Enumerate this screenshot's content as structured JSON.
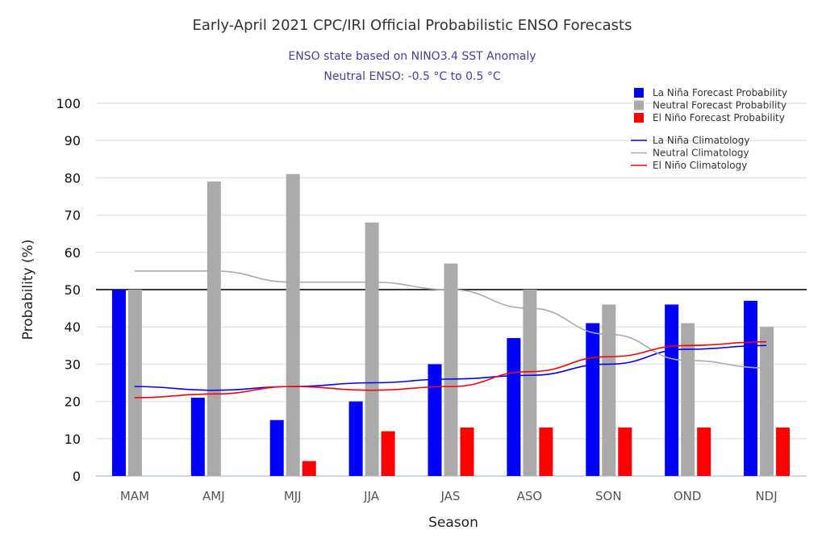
{
  "chart_data": {
    "type": "bar",
    "title": "Early-April 2021 CPC/IRI Official Probabilistic ENSO Forecasts",
    "subtitle": [
      "ENSO state based on NINO3.4 SST Anomaly",
      "Neutral ENSO: -0.5 °C to 0.5 °C"
    ],
    "xlabel": "Season",
    "ylabel": "Probability (%)",
    "ylim": [
      0,
      100
    ],
    "yticks": [
      0,
      10,
      20,
      30,
      40,
      50,
      60,
      70,
      80,
      90,
      100
    ],
    "reference_line": 50,
    "categories": [
      "MAM",
      "AMJ",
      "MJJ",
      "JJA",
      "JAS",
      "ASO",
      "SON",
      "OND",
      "NDJ"
    ],
    "series": [
      {
        "name": "La Niña Forecast Probability",
        "kind": "bar",
        "color": "#0000ff",
        "values": [
          50,
          21,
          15,
          20,
          30,
          37,
          41,
          46,
          47
        ]
      },
      {
        "name": "Neutral Forecast Probability",
        "kind": "bar",
        "color": "#aaaaaa",
        "values": [
          50,
          79,
          81,
          68,
          57,
          50,
          46,
          41,
          40
        ]
      },
      {
        "name": "El Niño Forecast Probability",
        "kind": "bar",
        "color": "#ff0000",
        "values": [
          0,
          0,
          4,
          12,
          13,
          13,
          13,
          13,
          13
        ]
      },
      {
        "name": "La Niña Climatology",
        "kind": "line",
        "color": "#0000ff",
        "values": [
          24,
          23,
          24,
          25,
          26,
          27,
          30,
          34,
          35
        ]
      },
      {
        "name": "Neutral Climatology",
        "kind": "line",
        "color": "#aaaaaa",
        "values": [
          55,
          55,
          52,
          52,
          50,
          45,
          38,
          31,
          29
        ]
      },
      {
        "name": "El Niño Climatology",
        "kind": "line",
        "color": "#ff0000",
        "values": [
          21,
          22,
          24,
          23,
          24,
          28,
          32,
          35,
          36
        ]
      }
    ],
    "legend_position": "top-right",
    "grid": true
  }
}
